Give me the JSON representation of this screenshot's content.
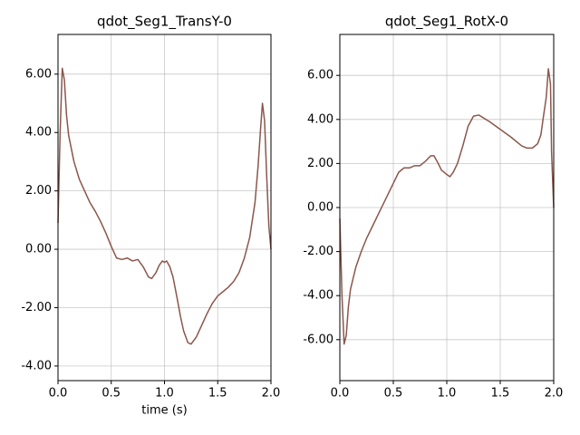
{
  "chart_data": [
    {
      "type": "line",
      "title": "qdot_Seg1_TransY-0",
      "x_label": "time (s)",
      "color": "#8c564b",
      "grid": true,
      "xlim": [
        0,
        2
      ],
      "ylim": [
        -4.5,
        7.36
      ],
      "xticks": [
        {
          "value": 0,
          "label": "0.0"
        },
        {
          "value": 0.5,
          "label": "0.5"
        },
        {
          "value": 1,
          "label": "1.0"
        },
        {
          "value": 1.5,
          "label": "1.5"
        },
        {
          "value": 2,
          "label": "2.0"
        }
      ],
      "yticks": [
        {
          "value": -4,
          "label": "-4.00"
        },
        {
          "value": -2,
          "label": "-2.00"
        },
        {
          "value": 0,
          "label": "0.00"
        },
        {
          "value": 2,
          "label": "2.00"
        },
        {
          "value": 4,
          "label": "4.00"
        },
        {
          "value": 6,
          "label": "6.00"
        }
      ],
      "x": [
        0,
        0.02,
        0.04,
        0.06,
        0.08,
        0.1,
        0.15,
        0.2,
        0.25,
        0.3,
        0.35,
        0.4,
        0.45,
        0.5,
        0.55,
        0.6,
        0.65,
        0.7,
        0.75,
        0.8,
        0.85,
        0.88,
        0.92,
        0.95,
        0.98,
        1.0,
        1.02,
        1.05,
        1.08,
        1.12,
        1.15,
        1.18,
        1.22,
        1.25,
        1.3,
        1.35,
        1.4,
        1.45,
        1.5,
        1.55,
        1.6,
        1.65,
        1.7,
        1.75,
        1.8,
        1.85,
        1.88,
        1.9,
        1.92,
        1.94,
        1.96,
        1.98,
        2.0
      ],
      "values": [
        0.9,
        4,
        6.2,
        5.8,
        4.6,
        3.9,
        3.0,
        2.4,
        2.0,
        1.6,
        1.3,
        0.95,
        0.55,
        0.1,
        -0.3,
        -0.35,
        -0.3,
        -0.4,
        -0.35,
        -0.6,
        -0.95,
        -1.0,
        -0.8,
        -0.55,
        -0.4,
        -0.45,
        -0.4,
        -0.6,
        -0.95,
        -1.7,
        -2.3,
        -2.8,
        -3.2,
        -3.25,
        -3.0,
        -2.6,
        -2.2,
        -1.85,
        -1.6,
        -1.45,
        -1.3,
        -1.1,
        -0.8,
        -0.3,
        0.4,
        1.6,
        2.9,
        4.0,
        5.0,
        4.4,
        2.5,
        0.8,
        0
      ]
    },
    {
      "type": "line",
      "title": "qdot_Seg1_RotX-0",
      "color": "#8c564b",
      "grid": true,
      "xlim": [
        0,
        2
      ],
      "ylim": [
        -7.86,
        7.86
      ],
      "xticks": [
        {
          "value": 0,
          "label": "0.0"
        },
        {
          "value": 0.5,
          "label": "0.5"
        },
        {
          "value": 1,
          "label": "1.0"
        },
        {
          "value": 1.5,
          "label": "1.5"
        },
        {
          "value": 2,
          "label": "2.0"
        }
      ],
      "yticks": [
        {
          "value": -6,
          "label": "-6.00"
        },
        {
          "value": -4,
          "label": "-4.00"
        },
        {
          "value": -2,
          "label": "-2.00"
        },
        {
          "value": 0,
          "label": "0.00"
        },
        {
          "value": 2,
          "label": "2.00"
        },
        {
          "value": 4,
          "label": "4.00"
        },
        {
          "value": 6,
          "label": "6.00"
        }
      ],
      "x": [
        0,
        0.02,
        0.04,
        0.06,
        0.08,
        0.1,
        0.15,
        0.2,
        0.25,
        0.3,
        0.35,
        0.4,
        0.45,
        0.5,
        0.55,
        0.6,
        0.65,
        0.7,
        0.75,
        0.8,
        0.85,
        0.88,
        0.92,
        0.95,
        1.0,
        1.03,
        1.06,
        1.1,
        1.15,
        1.2,
        1.25,
        1.3,
        1.4,
        1.5,
        1.6,
        1.7,
        1.75,
        1.8,
        1.85,
        1.88,
        1.9,
        1.93,
        1.95,
        1.97,
        1.98,
        2.0
      ],
      "values": [
        -0.5,
        -4,
        -6.2,
        -5.8,
        -4.5,
        -3.7,
        -2.7,
        -2.0,
        -1.4,
        -0.9,
        -0.4,
        0.1,
        0.6,
        1.1,
        1.6,
        1.8,
        1.8,
        1.9,
        1.9,
        2.1,
        2.35,
        2.35,
        2.0,
        1.7,
        1.5,
        1.4,
        1.6,
        2.0,
        2.8,
        3.7,
        4.15,
        4.2,
        3.9,
        3.55,
        3.2,
        2.8,
        2.7,
        2.7,
        2.9,
        3.3,
        4.0,
        5.0,
        6.3,
        5.6,
        2.5,
        0
      ]
    }
  ]
}
